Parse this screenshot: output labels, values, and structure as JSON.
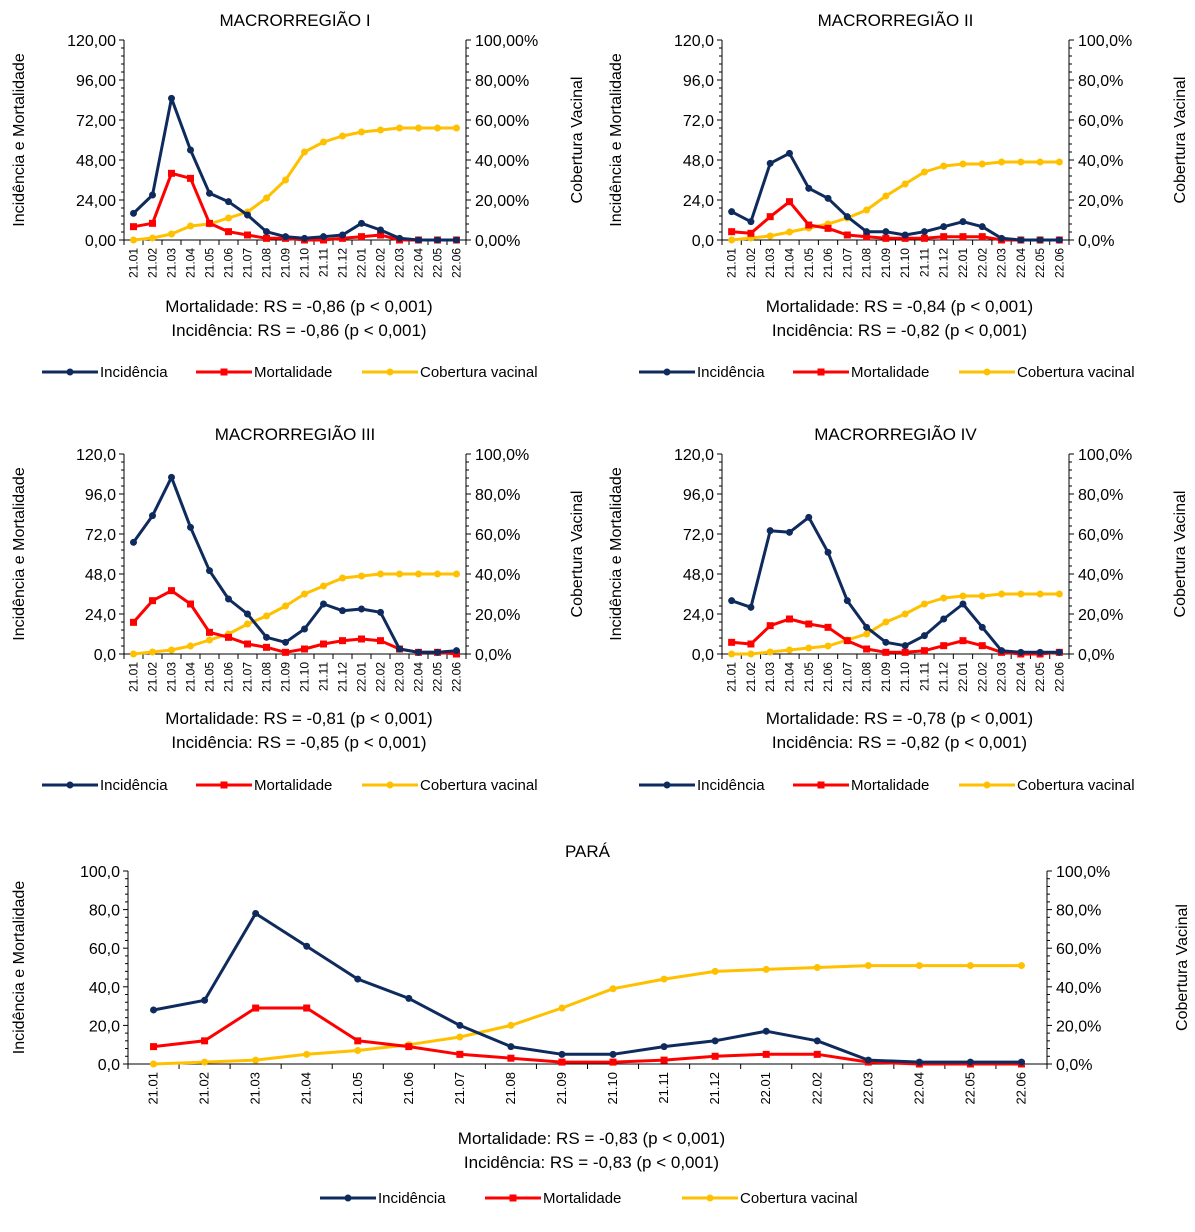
{
  "colors": {
    "incidencia": "#0f2a5c",
    "mortalidade": "#ff0000",
    "cobertura": "#ffc000",
    "axis": "#000000"
  },
  "legend": {
    "incidencia": "Incidência",
    "mortalidade": "Mortalidade",
    "cobertura": "Cobertura vacinal"
  },
  "chart_data": [
    {
      "type": "line",
      "title": "MACRORREGIÃO I",
      "ylabel_left": "Incidência e Mortalidade",
      "ylabel_right": "Cobertura Vacinal",
      "ylim_left": [
        0,
        120
      ],
      "ylim_right": [
        0,
        100
      ],
      "yticks_left": [
        "0,00",
        "24,00",
        "48,00",
        "72,00",
        "96,00",
        "120,00"
      ],
      "yticks_right": [
        "0,00%",
        "20,00%",
        "40,00%",
        "60,00%",
        "80,00%",
        "100,00%"
      ],
      "categories": [
        "21.01",
        "21.02",
        "21.03",
        "21.04",
        "21.05",
        "21.06",
        "21.07",
        "21.08",
        "21.09",
        "21.10",
        "21.11",
        "21.12",
        "22.01",
        "22.02",
        "22.03",
        "22.04",
        "22.05",
        "22.06"
      ],
      "series": [
        {
          "name": "Incidência",
          "values": [
            16,
            27,
            85,
            54,
            28,
            23,
            15,
            5,
            2,
            1,
            2,
            3,
            10,
            6,
            1,
            0,
            0,
            0
          ]
        },
        {
          "name": "Mortalidade",
          "values": [
            8,
            10,
            40,
            37,
            10,
            5,
            3,
            1,
            1,
            0,
            0,
            1,
            2,
            3,
            0,
            0,
            0,
            0
          ]
        },
        {
          "name": "Cobertura vacinal",
          "values": [
            0,
            1,
            3,
            7,
            8,
            11,
            14,
            21,
            30,
            44,
            49,
            52,
            54,
            55,
            56,
            56,
            56,
            56
          ]
        }
      ],
      "annotations": [
        "Mortalidade: RS = -0,86 (p < 0,001)",
        "Incidência: RS = -0,86 (p < 0,001)"
      ],
      "legend_position": "bottom"
    },
    {
      "type": "line",
      "title": "MACRORREGIÃO II",
      "ylabel_left": "Incidência e Mortalidade",
      "ylabel_right": "Cobertura Vacinal",
      "ylim_left": [
        0,
        120
      ],
      "ylim_right": [
        0,
        100
      ],
      "yticks_left": [
        "0,0",
        "24,0",
        "48,0",
        "72,0",
        "96,0",
        "120,0"
      ],
      "yticks_right": [
        "0,0%",
        "20,0%",
        "40,0%",
        "60,0%",
        "80,0%",
        "100,0%"
      ],
      "categories": [
        "21.01",
        "21.02",
        "21.03",
        "21.04",
        "21.05",
        "21.06",
        "21.07",
        "21.08",
        "21.09",
        "21.10",
        "21.11",
        "21.12",
        "22.01",
        "22.02",
        "22.03",
        "22.04",
        "22.05",
        "22.06"
      ],
      "series": [
        {
          "name": "Incidência",
          "values": [
            17,
            11,
            46,
            52,
            31,
            25,
            14,
            5,
            5,
            3,
            5,
            8,
            11,
            8,
            1,
            0,
            0,
            0
          ]
        },
        {
          "name": "Mortalidade",
          "values": [
            5,
            4,
            14,
            23,
            9,
            7,
            3,
            2,
            1,
            1,
            1,
            2,
            2,
            2,
            0,
            0,
            0,
            0
          ]
        },
        {
          "name": "Cobertura vacinal",
          "values": [
            0,
            1,
            2,
            4,
            6,
            8,
            11,
            15,
            22,
            28,
            34,
            37,
            38,
            38,
            39,
            39,
            39,
            39
          ]
        }
      ],
      "annotations": [
        "Mortalidade: RS = -0,84 (p < 0,001)",
        "Incidência: RS = -0,82 (p < 0,001)"
      ],
      "legend_position": "bottom"
    },
    {
      "type": "line",
      "title": "MACRORREGIÃO III",
      "ylabel_left": "Incidência e Mortalidade",
      "ylabel_right": "Cobertura Vacinal",
      "ylim_left": [
        0,
        120
      ],
      "ylim_right": [
        0,
        100
      ],
      "yticks_left": [
        "0,0",
        "24,0",
        "48,0",
        "72,0",
        "96,0",
        "120,0"
      ],
      "yticks_right": [
        "0,0%",
        "20,0%",
        "40,0%",
        "60,0%",
        "80,0%",
        "100,0%"
      ],
      "categories": [
        "21.01",
        "21.02",
        "21.03",
        "21.04",
        "21.05",
        "21.06",
        "21.07",
        "21.08",
        "21.09",
        "21.10",
        "21.11",
        "21.12",
        "22.01",
        "22.02",
        "22.03",
        "22.04",
        "22.05",
        "22.06"
      ],
      "series": [
        {
          "name": "Incidência",
          "values": [
            67,
            83,
            106,
            76,
            50,
            33,
            24,
            10,
            7,
            15,
            30,
            26,
            27,
            25,
            3,
            1,
            1,
            2
          ]
        },
        {
          "name": "Mortalidade",
          "values": [
            19,
            32,
            38,
            30,
            13,
            10,
            6,
            4,
            1,
            3,
            6,
            8,
            9,
            8,
            3,
            1,
            1,
            0
          ]
        },
        {
          "name": "Cobertura vacinal",
          "values": [
            0,
            1,
            2,
            4,
            7,
            10,
            15,
            19,
            24,
            30,
            34,
            38,
            39,
            40,
            40,
            40,
            40,
            40
          ]
        }
      ],
      "annotations": [
        "Mortalidade: RS = -0,81 (p < 0,001)",
        "Incidência: RS = -0,85 (p < 0,001)"
      ],
      "legend_position": "bottom"
    },
    {
      "type": "line",
      "title": "MACRORREGIÃO IV",
      "ylabel_left": "Incidência e Mortalidade",
      "ylabel_right": "Cobertura Vacinal",
      "ylim_left": [
        0,
        120
      ],
      "ylim_right": [
        0,
        100
      ],
      "yticks_left": [
        "0,0",
        "24,0",
        "48,0",
        "72,0",
        "96,0",
        "120,0"
      ],
      "yticks_right": [
        "0,0%",
        "20,0%",
        "40,0%",
        "60,0%",
        "80,0%",
        "100,0%"
      ],
      "categories": [
        "21.01",
        "21.02",
        "21.03",
        "21.04",
        "21.05",
        "21.06",
        "21.07",
        "21.08",
        "21.09",
        "21.10",
        "21.11",
        "21.12",
        "22.01",
        "22.02",
        "22.03",
        "22.04",
        "22.05",
        "22.06"
      ],
      "series": [
        {
          "name": "Incidência",
          "values": [
            32,
            28,
            74,
            73,
            82,
            61,
            32,
            16,
            7,
            5,
            11,
            21,
            30,
            16,
            2,
            1,
            1,
            1
          ]
        },
        {
          "name": "Mortalidade",
          "values": [
            7,
            6,
            17,
            21,
            18,
            16,
            8,
            3,
            1,
            1,
            2,
            5,
            8,
            5,
            1,
            0,
            0,
            1
          ]
        },
        {
          "name": "Cobertura vacinal",
          "values": [
            0,
            0,
            1,
            2,
            3,
            4,
            7,
            10,
            16,
            20,
            25,
            28,
            29,
            29,
            30,
            30,
            30,
            30
          ]
        }
      ],
      "annotations": [
        "Mortalidade: RS = -0,78 (p < 0,001)",
        "Incidência: RS = -0,82 (p < 0,001)"
      ],
      "legend_position": "bottom"
    },
    {
      "type": "line",
      "title": "PARÁ",
      "ylabel_left": "Incidência e Mortalidade",
      "ylabel_right": "Cobertura Vacinal",
      "ylim_left": [
        0,
        100
      ],
      "ylim_right": [
        0,
        100
      ],
      "yticks_left": [
        "0,0",
        "20,0",
        "40,0",
        "60,0",
        "80,0",
        "100,0"
      ],
      "yticks_right": [
        "0,0%",
        "20,0%",
        "40,0%",
        "60,0%",
        "80,0%",
        "100,0%"
      ],
      "categories": [
        "21.01",
        "21.02",
        "21.03",
        "21.04",
        "21.05",
        "21.06",
        "21.07",
        "21.08",
        "21.09",
        "21.10",
        "21.11",
        "21.12",
        "22.01",
        "22.02",
        "22.03",
        "22.04",
        "22.05",
        "22.06"
      ],
      "series": [
        {
          "name": "Incidência",
          "values": [
            28,
            33,
            78,
            61,
            44,
            34,
            20,
            9,
            5,
            5,
            9,
            12,
            17,
            12,
            2,
            1,
            1,
            1
          ]
        },
        {
          "name": "Mortalidade",
          "values": [
            9,
            12,
            29,
            29,
            12,
            9,
            5,
            3,
            1,
            1,
            2,
            4,
            5,
            5,
            1,
            0,
            0,
            0
          ]
        },
        {
          "name": "Cobertura vacinal",
          "values": [
            0,
            1,
            2,
            5,
            7,
            10,
            14,
            20,
            29,
            39,
            44,
            48,
            49,
            50,
            51,
            51,
            51,
            51
          ]
        }
      ],
      "annotations": [
        "Mortalidade: RS = -0,83 (p < 0,001)",
        "Incidência: RS = -0,83 (p < 0,001)"
      ],
      "legend_position": "bottom"
    }
  ]
}
